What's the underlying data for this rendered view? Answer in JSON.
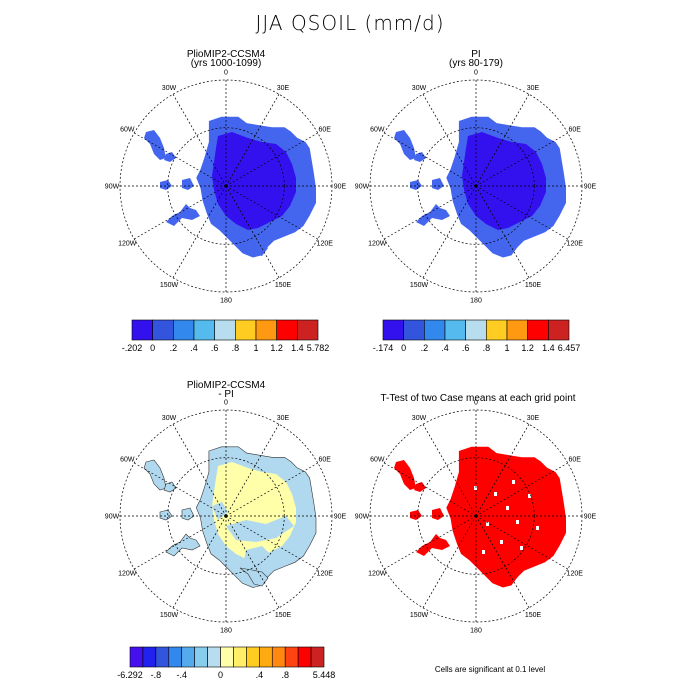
{
  "figure": {
    "title": "JJA QSOIL (mm/d)"
  },
  "panels": [
    {
      "id": "tl",
      "title": "PlioMIP2-CCSM4",
      "subtitle": "(yrs 1000-1099)",
      "lon_labels": [
        "0",
        "30E",
        "60E",
        "90E",
        "120E",
        "150E",
        "180",
        "150W",
        "120W",
        "90W",
        "60W",
        "30W"
      ],
      "base_color": "#3311ee",
      "edge_color": "#4466ee"
    },
    {
      "id": "tr",
      "title": "PI",
      "subtitle": "(yrs 80-179)",
      "lon_labels": [
        "0",
        "30E",
        "60E",
        "90E",
        "120E",
        "150E",
        "180",
        "150W",
        "120W",
        "90W",
        "60W",
        "30W"
      ],
      "base_color": "#3311ee",
      "edge_color": "#4466ee"
    },
    {
      "id": "bl",
      "title": "PlioMIP2-CCSM4",
      "subtitle": "- PI",
      "lon_labels": [
        "0",
        "30E",
        "60E",
        "90E",
        "120E",
        "150E",
        "180",
        "150W",
        "120W",
        "90W",
        "60W",
        "30W"
      ],
      "base_color": "#ffffaa",
      "edge_color": "#b0d8ee"
    },
    {
      "id": "br",
      "title": "T-Test of two Case means at each grid point",
      "subtitle": "",
      "lon_labels": [
        "0",
        "30E",
        "60E",
        "90E",
        "120E",
        "150E",
        "180",
        "150W",
        "120W",
        "90W",
        "60W",
        "30W"
      ],
      "base_color": "#ff0000",
      "edge_color": "#ff0000"
    }
  ],
  "colorbars": [
    {
      "id": "cb-tl",
      "colors": [
        "#3311ee",
        "#3355dd",
        "#3388ee",
        "#55bbee",
        "#b8ddee",
        "#ffcc22",
        "#ff9911",
        "#ff0000",
        "#cc2222"
      ],
      "labels": [
        "-.202",
        "0",
        ".2",
        ".4",
        ".6",
        ".8",
        "1",
        "1.2",
        "1.4",
        "5.782"
      ]
    },
    {
      "id": "cb-tr",
      "colors": [
        "#3311ee",
        "#3355dd",
        "#3388ee",
        "#55bbee",
        "#b8ddee",
        "#ffcc22",
        "#ff9911",
        "#ff0000",
        "#cc2222"
      ],
      "labels": [
        "-.174",
        "0",
        ".2",
        ".4",
        ".6",
        ".8",
        "1",
        "1.2",
        "1.4",
        "6.457"
      ]
    },
    {
      "id": "cb-bl",
      "colors": [
        "#4411ee",
        "#2222ee",
        "#3355dd",
        "#3388ee",
        "#55aaee",
        "#88ccee",
        "#b8ddee",
        "#ffffaa",
        "#ffee66",
        "#ffcc22",
        "#ffaa11",
        "#ff8811",
        "#ff4411",
        "#ff0000",
        "#cc2222"
      ],
      "labels": [
        "-6.292",
        "-.8",
        "-.4",
        "0",
        ".4",
        ".8",
        "5.448"
      ]
    }
  ],
  "footnote": "Cells are significant at 0.1 level"
}
